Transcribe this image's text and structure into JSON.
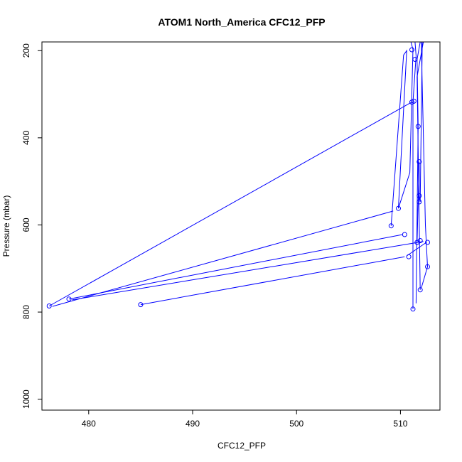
{
  "chart_data": {
    "type": "line",
    "title": "ATOM1 North_America CFC12_PFP",
    "xlabel": "CFC12_PFP",
    "ylabel": "Pressure (mbar)",
    "xlim": [
      475.5,
      513.8
    ],
    "ylim": [
      1025,
      180
    ],
    "y_reversed": true,
    "x_ticks": [
      480,
      490,
      500,
      510
    ],
    "y_ticks": [
      200,
      400,
      600,
      800,
      1000
    ],
    "x_tick_labels": [
      "480",
      "490",
      "500",
      "510"
    ],
    "y_tick_labels": [
      "200",
      "400",
      "600",
      "800",
      "1000"
    ],
    "grid": false,
    "legend": "none",
    "series_color": "#0000ff",
    "series": [
      {
        "type": "line",
        "points": [
          {
            "x": 485.0,
            "y": 783
          },
          {
            "x": 510.4,
            "y": 673
          }
        ]
      },
      {
        "type": "line",
        "points": [
          {
            "x": 476.2,
            "y": 786
          },
          {
            "x": 511.1,
            "y": 318
          }
        ]
      },
      {
        "type": "line",
        "points": [
          {
            "x": 478.1,
            "y": 770
          },
          {
            "x": 510.2,
            "y": 622
          }
        ]
      },
      {
        "type": "line",
        "points": [
          {
            "x": 478.4,
            "y": 772
          },
          {
            "x": 512.2,
            "y": 638
          }
        ]
      },
      {
        "type": "line",
        "points": [
          {
            "x": 476.5,
            "y": 787
          },
          {
            "x": 509.3,
            "y": 568
          }
        ]
      },
      {
        "type": "line",
        "points": [
          {
            "x": 509.1,
            "y": 602
          },
          {
            "x": 510.3,
            "y": 210
          },
          {
            "x": 510.6,
            "y": 200
          },
          {
            "x": 509.8,
            "y": 562
          },
          {
            "x": 510.9,
            "y": 480
          },
          {
            "x": 511.2,
            "y": 197
          },
          {
            "x": 511.0,
            "y": 180
          }
        ]
      },
      {
        "type": "line",
        "points": [
          {
            "x": 511.2,
            "y": 793
          },
          {
            "x": 511.2,
            "y": 318
          },
          {
            "x": 511.5,
            "y": 212
          },
          {
            "x": 511.4,
            "y": 180
          }
        ]
      },
      {
        "type": "line",
        "points": [
          {
            "x": 511.5,
            "y": 780
          },
          {
            "x": 511.7,
            "y": 374
          },
          {
            "x": 511.6,
            "y": 220
          },
          {
            "x": 511.9,
            "y": 180
          }
        ]
      },
      {
        "type": "line",
        "points": [
          {
            "x": 511.6,
            "y": 640
          },
          {
            "x": 511.8,
            "y": 455
          },
          {
            "x": 511.8,
            "y": 533
          },
          {
            "x": 511.9,
            "y": 547
          },
          {
            "x": 512.1,
            "y": 180
          }
        ]
      },
      {
        "type": "line",
        "points": [
          {
            "x": 511.9,
            "y": 749
          },
          {
            "x": 511.6,
            "y": 260
          },
          {
            "x": 512.2,
            "y": 180
          }
        ]
      },
      {
        "type": "line",
        "points": [
          {
            "x": 512.0,
            "y": 745
          },
          {
            "x": 512.6,
            "y": 696
          },
          {
            "x": 512.4,
            "y": 600
          },
          {
            "x": 512.0,
            "y": 180
          }
        ]
      },
      {
        "type": "line",
        "points": [
          {
            "x": 510.6,
            "y": 671
          },
          {
            "x": 512.5,
            "y": 640
          }
        ]
      }
    ],
    "markers": [
      {
        "x": 485.0,
        "y": 783
      },
      {
        "x": 476.2,
        "y": 786
      },
      {
        "x": 478.1,
        "y": 770
      },
      {
        "x": 509.1,
        "y": 602
      },
      {
        "x": 509.8,
        "y": 562
      },
      {
        "x": 510.4,
        "y": 622
      },
      {
        "x": 510.8,
        "y": 673
      },
      {
        "x": 511.1,
        "y": 318
      },
      {
        "x": 511.3,
        "y": 316
      },
      {
        "x": 511.1,
        "y": 198
      },
      {
        "x": 511.4,
        "y": 220
      },
      {
        "x": 511.2,
        "y": 793
      },
      {
        "x": 511.7,
        "y": 374
      },
      {
        "x": 511.8,
        "y": 455
      },
      {
        "x": 511.8,
        "y": 533
      },
      {
        "x": 511.8,
        "y": 547
      },
      {
        "x": 511.6,
        "y": 640
      },
      {
        "x": 511.9,
        "y": 636
      },
      {
        "x": 512.6,
        "y": 640
      },
      {
        "x": 512.6,
        "y": 696
      },
      {
        "x": 511.9,
        "y": 749
      }
    ]
  }
}
